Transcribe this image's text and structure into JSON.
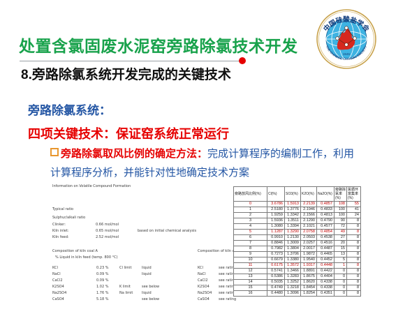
{
  "colors": {
    "title_green": "#18A24B",
    "heading_blue": "#2456A4",
    "accent_red": "#E60000",
    "bullet_orange": "#E8962E",
    "table_red": "#C00000",
    "logo_gold": "#C8A24B",
    "logo_blue": "#3EB3E2",
    "logo_navy": "#0F3B7C",
    "flame_red": "#D6281E"
  },
  "slide": {
    "title": "处置含氯固废水泥窑旁路除氯技术开发",
    "subtitle": "8.旁路除氯系统开发完成的关键技术",
    "system_label": "旁路除氯系统：",
    "key_tech": "四项关键技术：保证窑系统正常运行",
    "bullet": {
      "label": "旁路除氯取风比例的确定方法：",
      "text1": "完成计算程序的编制工作，利用",
      "text2": "计算程序分析，并能针对性地确定技术方案"
    }
  },
  "logo": {
    "name_cn": "中国硅酸盐学会",
    "name_en": "THE CHINESE CERAMIC SOCIETY",
    "year": "1945"
  },
  "doc_panel": {
    "title": "Information on Volatile Compound Formation",
    "typical_ratio": "Typical ratio",
    "sulphur_heading": "Sulphur/alkali ratio",
    "sulphur_rows": [
      {
        "label": "Clinker:",
        "value": "0.66 mol/mol",
        "note": ""
      },
      {
        "label": "Kiln inlet:",
        "value": "0.65 mol/mol",
        "note": "based on initial chemical analysis"
      },
      {
        "label": "Kiln feed:",
        "value": "2.52 mol/mol",
        "note": ""
      }
    ],
    "comp_a_title": "Composition of kiln coal A",
    "comp_a_subtitle": "% Liquid in kiln feed (temp. 800 °C)",
    "comp_a_rows": [
      {
        "chem": "KCl",
        "pct": "0.23 %",
        "limit": "Cl limit",
        "state": "liquid"
      },
      {
        "chem": "NaCl",
        "pct": "0.09 %",
        "limit": "",
        "state": "liquid"
      },
      {
        "chem": "CaCl2",
        "pct": "0.09 %",
        "limit": "",
        "state": ""
      },
      {
        "chem": "K2SO4",
        "pct": "1.02 %",
        "limit": "K limit",
        "state": "see below"
      },
      {
        "chem": "Na2SO4",
        "pct": "1.76 %",
        "limit": "Na limit",
        "state": "liquid"
      },
      {
        "chem": "CaSO4",
        "pct": "5.18 %",
        "limit": "",
        "state": "see below"
      }
    ],
    "comp_dust_title": "Composition of kiln waste dust",
    "comp_dust_rows": [
      {
        "chem": "KCl",
        "note": "see rating"
      },
      {
        "chem": "NaCl",
        "note": "see rating"
      },
      {
        "chem": "CaCl2",
        "note": "see rating"
      },
      {
        "chem": "K2SO4",
        "note": "see rating"
      },
      {
        "chem": "Na2SO4",
        "note": "see rating"
      },
      {
        "chem": "CaSO4",
        "note": "see rating"
      }
    ]
  },
  "results_table": {
    "columns": [
      "旁路放风比例(%)",
      "Cl(%)",
      "SO3(%)",
      "K2O(%)",
      "Na2O(%)",
      "旁路除氯率 (%)",
      "氯循环富集率 (%)"
    ],
    "red_rows": [
      0,
      5,
      11
    ],
    "rows": [
      [
        "0",
        "3.6786",
        "1.5913",
        "2.2139",
        "0.4857",
        "108",
        "55"
      ],
      [
        "1",
        "2.5180",
        "1.3776",
        "2.1946",
        "0.4833",
        "100",
        "41"
      ],
      [
        "2",
        "1.9259",
        "1.3342",
        "2.1566",
        "0.4813",
        "100",
        "24"
      ],
      [
        "3",
        "1.5936",
        "1.3511",
        "2.1290",
        "0.4790",
        "90",
        "8"
      ],
      [
        "4",
        "1.3080",
        "1.3394",
        "2.1021",
        "0.4577",
        "72",
        "8"
      ],
      [
        "5",
        "1.1287",
        "1.3290",
        "2.0758",
        "0.4854",
        "49",
        "8"
      ],
      [
        "6",
        "0.9910",
        "1.2130",
        "2.0503",
        "0.4538",
        "27",
        "8"
      ],
      [
        "7",
        "0.8846",
        "1.3009",
        "2.0257",
        "0.4516",
        "20",
        "8"
      ],
      [
        "8",
        "0.7982",
        "1.3804",
        "2.0017",
        "0.4487",
        "15",
        "8"
      ],
      [
        "9",
        "0.7273",
        "1.3706",
        "1.9872",
        "0.4465",
        "13",
        "8"
      ],
      [
        "10",
        "0.6679",
        "1.3380",
        "1.9540",
        "0.4452",
        "5",
        "8"
      ],
      [
        "11",
        "0.6175",
        "1.3572",
        "1.9317",
        "0.4448",
        "1",
        "8"
      ],
      [
        "12",
        "0.5741",
        "1.3466",
        "1.8891",
        "0.4422",
        "0",
        "8"
      ],
      [
        "13",
        "0.5386",
        "1.3283",
        "1.8675",
        "0.4404",
        "0",
        "8"
      ],
      [
        "14",
        "0.5035",
        "1.3252",
        "1.8620",
        "0.4338",
        "0",
        "8"
      ],
      [
        "15",
        "0.4749",
        "1.3218",
        "1.8454",
        "0.4338",
        "0",
        "8"
      ],
      [
        "16",
        "0.4480",
        "1.3096",
        "1.8254",
        "0.4351",
        "0",
        "8"
      ]
    ]
  }
}
